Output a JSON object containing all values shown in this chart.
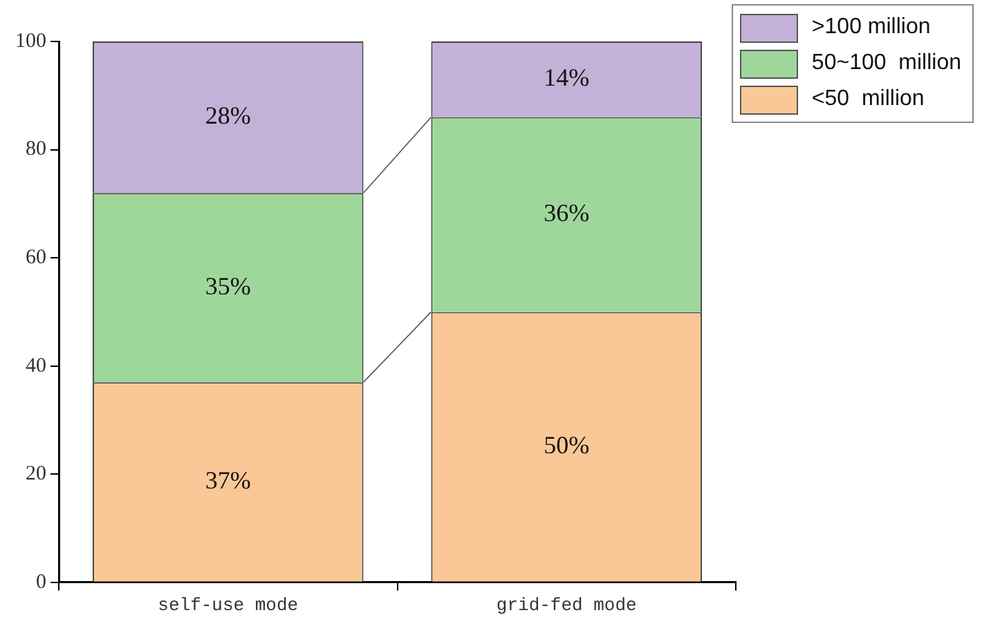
{
  "chart_data": {
    "type": "bar",
    "stacked": true,
    "categories": [
      "self-use mode",
      "grid-fed mode"
    ],
    "series": [
      {
        "name": "<50  million",
        "color": "#fac896",
        "values": [
          37,
          50
        ],
        "value_labels": [
          "37%",
          "50%"
        ]
      },
      {
        "name": "50~100  million",
        "color": "#9fd79b",
        "values": [
          35,
          36
        ],
        "value_labels": [
          "35%",
          "36%"
        ]
      },
      {
        "name": ">100 million",
        "color": "#c3b1d7",
        "values": [
          28,
          14
        ],
        "value_labels": [
          "28%",
          "14%"
        ]
      }
    ],
    "ylim": [
      0,
      100
    ],
    "yticks": [
      0,
      20,
      40,
      60,
      80,
      100
    ],
    "grid": false,
    "legend": "top right"
  }
}
